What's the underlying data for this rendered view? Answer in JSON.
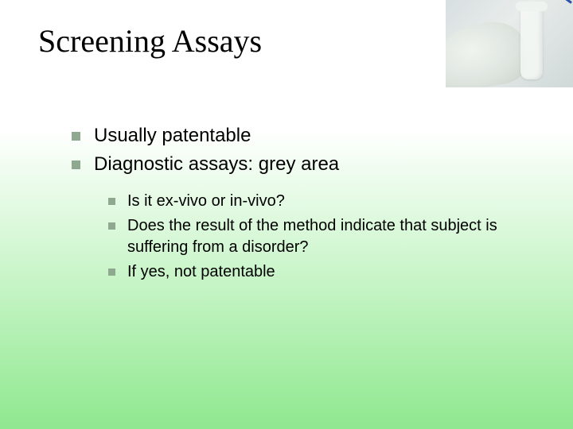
{
  "slide": {
    "title": "Screening Assays",
    "bullets": {
      "main": [
        "Usually patentable",
        "Diagnostic assays: grey area"
      ],
      "sub": [
        "Is it ex-vivo or in-vivo?",
        "Does the result of the method indicate that subject is suffering from a disorder?",
        "If yes, not patentable"
      ]
    },
    "style": {
      "background_gradient": [
        "#ffffff",
        "#8fe88f"
      ],
      "title_font": "Times New Roman",
      "title_fontsize": 40,
      "body_font": "Arial",
      "main_bullet_fontsize": 24,
      "sub_bullet_fontsize": 20,
      "bullet_color": "#8fa890",
      "text_color": "#000000"
    }
  }
}
